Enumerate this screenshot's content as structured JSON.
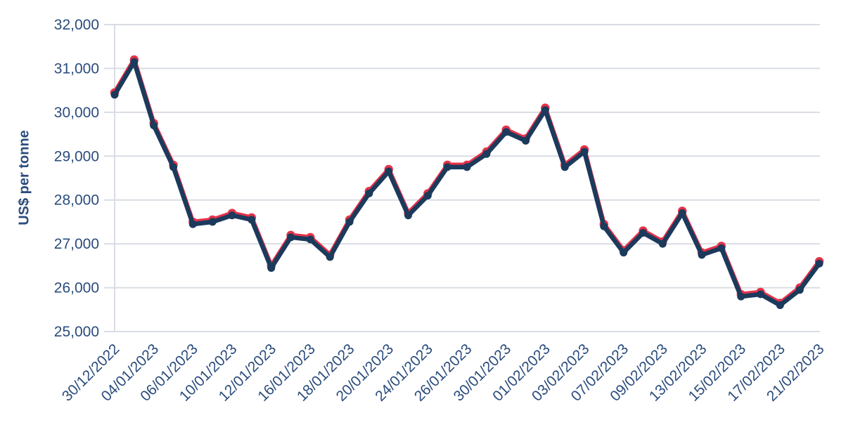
{
  "colors": {
    "background": "#ffffff",
    "grid": "#d9dde3",
    "axis_text": "#2a4c7c",
    "red_series": "#e5334a",
    "navy_series": "#1b3a5c"
  },
  "chart_data": {
    "type": "line",
    "title": "",
    "ylabel": "US$ per tonne",
    "xlabel": "",
    "ylim": [
      25000,
      32000
    ],
    "ytick_step": 1000,
    "yticks": [
      {
        "value": 25000,
        "label": "25,000"
      },
      {
        "value": 26000,
        "label": "26,000"
      },
      {
        "value": 27000,
        "label": "27,000"
      },
      {
        "value": 28000,
        "label": "28,000"
      },
      {
        "value": 29000,
        "label": "29,000"
      },
      {
        "value": 30000,
        "label": "30,000"
      },
      {
        "value": 31000,
        "label": "31,000"
      },
      {
        "value": 32000,
        "label": "32,000"
      }
    ],
    "x_tick_labels": [
      "30/12/2022",
      "04/01/2023",
      "06/01/2023",
      "10/01/2023",
      "12/01/2023",
      "16/01/2023",
      "18/01/2023",
      "20/01/2023",
      "24/01/2023",
      "26/01/2023",
      "30/01/2023",
      "01/02/2023",
      "03/02/2023",
      "07/02/2023",
      "09/02/2023",
      "13/02/2023",
      "15/02/2023",
      "17/02/2023",
      "21/02/2023"
    ],
    "points_per_tick": 2,
    "n_points": 37,
    "grid": "horizontal",
    "legend": "none",
    "series": [
      {
        "name": "red-series",
        "color": "#e5334a",
        "values": [
          30450,
          31200,
          29750,
          28800,
          27500,
          27550,
          27700,
          27600,
          26500,
          27200,
          27150,
          26750,
          27550,
          28200,
          28700,
          27700,
          28150,
          28800,
          28800,
          29100,
          29600,
          29400,
          30100,
          28800,
          29150,
          27450,
          26850,
          27300,
          27050,
          27750,
          26800,
          26950,
          25850,
          25900,
          25650,
          26000,
          26600
        ]
      },
      {
        "name": "navy-series",
        "color": "#1b3a5c",
        "values": [
          30400,
          31150,
          29700,
          28750,
          27450,
          27500,
          27650,
          27550,
          26450,
          27150,
          27100,
          26700,
          27500,
          28150,
          28650,
          27650,
          28100,
          28750,
          28750,
          29050,
          29550,
          29350,
          30050,
          28750,
          29100,
          27400,
          26800,
          27250,
          27000,
          27700,
          26750,
          26900,
          25800,
          25850,
          25600,
          25950,
          26550
        ]
      }
    ]
  }
}
